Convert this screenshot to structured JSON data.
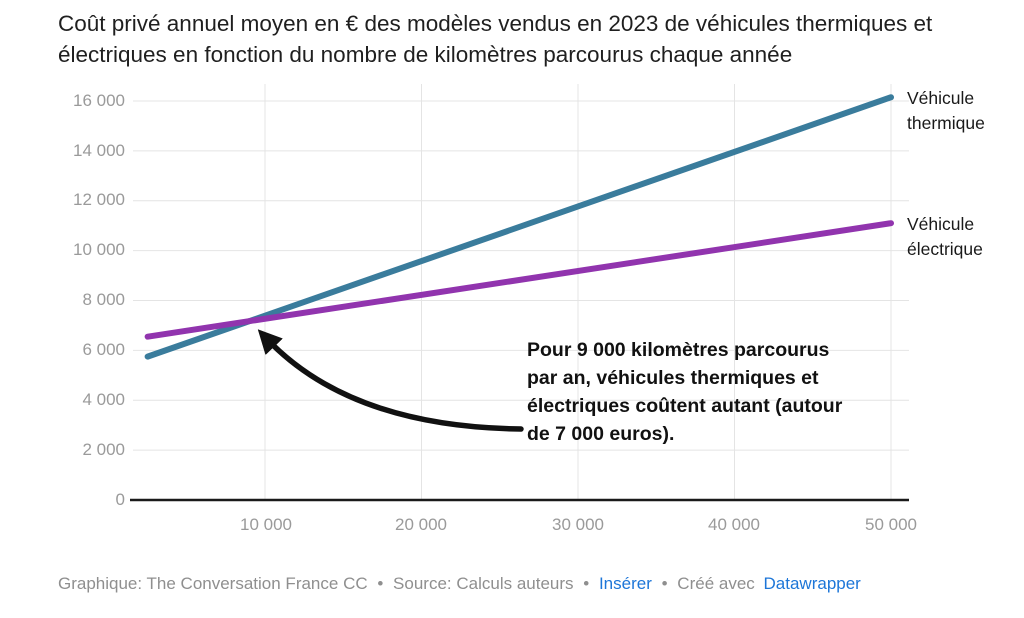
{
  "title": "Coût privé annuel moyen en € des modèles vendus en 2023 de véhicules thermiques et électriques en fonction du nombre de kilomètres parcourus chaque année",
  "colors": {
    "thermique": "#3a7c9c",
    "electrique": "#9134ae",
    "grid": "#e4e4e4",
    "axis": "#1a1a1a",
    "tick_text": "#9a9a9a",
    "annotation_black": "#111111",
    "footer_text": "#8f8f8f",
    "link_blue": "#1d76d8"
  },
  "chart_data": {
    "type": "line",
    "title": "Coût privé annuel moyen en € des modèles vendus en 2023 de véhicules thermiques et électriques en fonction du nombre de kilomètres parcourus chaque année",
    "xlabel": "",
    "ylabel": "",
    "xlim": [
      2500,
      50000
    ],
    "ylim": [
      0,
      16000
    ],
    "grid": true,
    "legend_position": "line-end-labels-right",
    "x_ticks": {
      "labels": [
        "10 000",
        "20 000",
        "30 000",
        "40 000",
        "50 000"
      ],
      "values": [
        10000,
        20000,
        30000,
        40000,
        50000
      ]
    },
    "y_ticks": {
      "labels": [
        "0",
        "2 000",
        "4 000",
        "6 000",
        "8 000",
        "10 000",
        "12 000",
        "14 000",
        "16 000"
      ],
      "values": [
        0,
        2000,
        4000,
        6000,
        8000,
        10000,
        12000,
        14000,
        16000
      ]
    },
    "series": [
      {
        "id": "thermique",
        "name": "Véhicule thermique",
        "color": "#3a7c9c",
        "x": [
          2500,
          50000
        ],
        "values": [
          5750,
          16150
        ]
      },
      {
        "id": "electrique",
        "name": "Véhicule électrique",
        "color": "#9134ae",
        "x": [
          2500,
          50000
        ],
        "values": [
          6550,
          11100
        ]
      }
    ],
    "annotation": {
      "lines": [
        "Pour 9 000 kilomètres parcourus",
        "par an, véhicules thermiques et",
        "électriques coûtent autant (autour",
        "de 7 000 euros)."
      ],
      "arrow_points_at": {
        "x": 9000,
        "y": 7000
      }
    }
  },
  "footer": {
    "credit": "Graphique: The Conversation France CC",
    "separator": "•",
    "source": "Source: Calculs auteurs",
    "embed_link": "Insérer",
    "created_with": "Créé avec",
    "tool": "Datawrapper"
  }
}
